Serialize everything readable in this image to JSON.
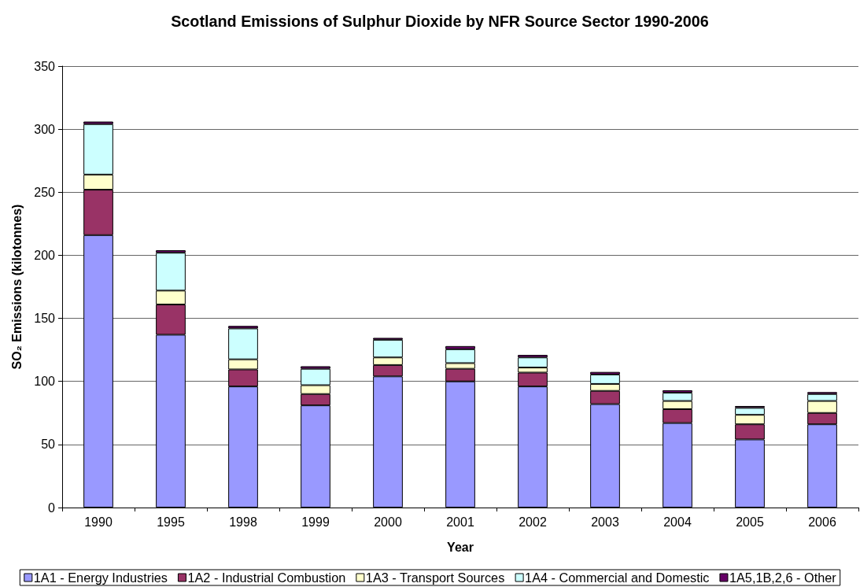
{
  "chart_data": {
    "type": "bar",
    "title": "Scotland Emissions of Sulphur Dioxide by NFR Source Sector 1990-2006",
    "xlabel": "Year",
    "ylabel": "SO₂ Emissions (kilotonnes)",
    "categories": [
      "1990",
      "1995",
      "1998",
      "1999",
      "2000",
      "2001",
      "2002",
      "2003",
      "2004",
      "2005",
      "2006"
    ],
    "stacked": true,
    "ylim": [
      0,
      350
    ],
    "yticks": [
      0,
      50,
      100,
      150,
      200,
      250,
      300,
      350
    ],
    "grid": "y",
    "legend": "bottom",
    "series": [
      {
        "name": "1A1 - Energy Industries",
        "color": "#9999ff",
        "values": [
          216,
          137,
          96,
          81,
          104,
          100,
          96,
          82,
          67,
          54,
          66
        ]
      },
      {
        "name": "1A2 - Industrial Combustion",
        "color": "#993366",
        "values": [
          36,
          24,
          13.5,
          9,
          9,
          10,
          11,
          10.5,
          11,
          12,
          9
        ]
      },
      {
        "name": "1A3 - Transport Sources",
        "color": "#ffffcc",
        "values": [
          12,
          11,
          8,
          7,
          6,
          4.5,
          4,
          5.5,
          6.5,
          7.5,
          9.5
        ]
      },
      {
        "name": "1A4 - Commercial and Domestic",
        "color": "#ccffff",
        "values": [
          40,
          30,
          24.5,
          13,
          14,
          11,
          8,
          7.5,
          6.5,
          5.5,
          5.5
        ]
      },
      {
        "name": "1A5,1B,2,6 - Other",
        "color": "#660066",
        "values": [
          2,
          2,
          2,
          2,
          1.5,
          2.5,
          2,
          2,
          2,
          1.5,
          1.5
        ]
      }
    ]
  }
}
